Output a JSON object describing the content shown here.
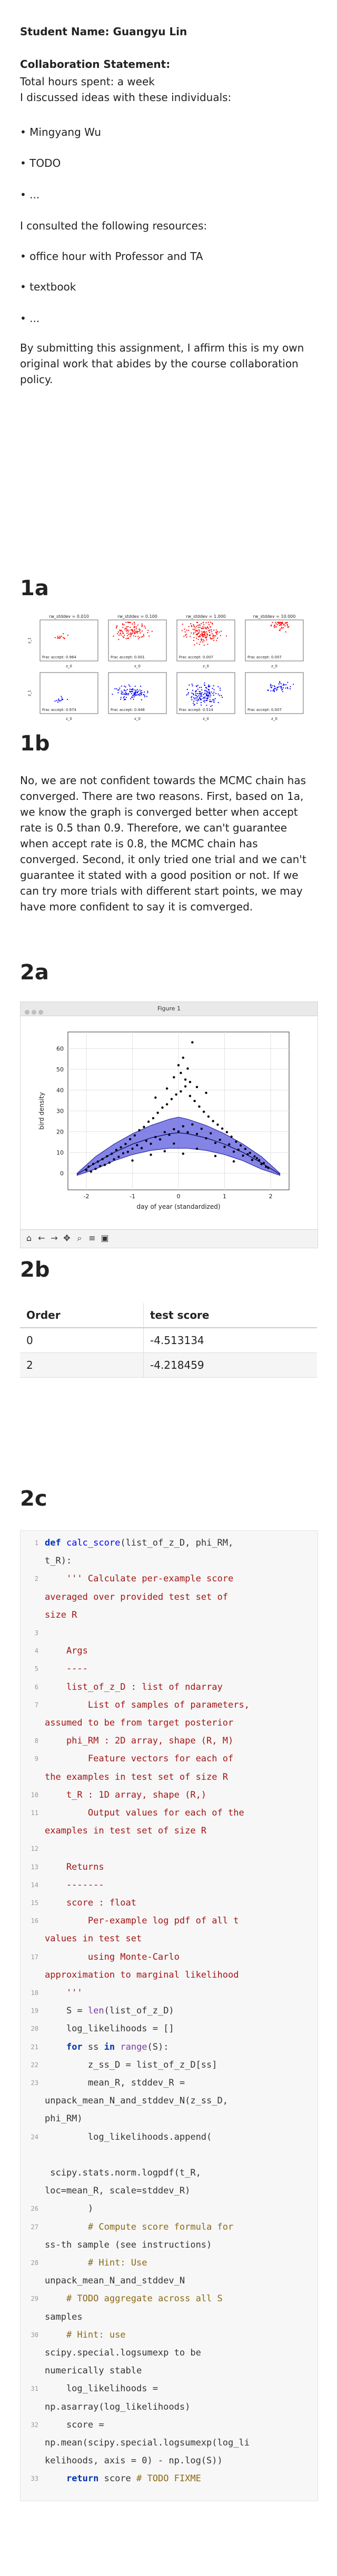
{
  "header": {
    "student_name": "Student Name: Guangyu Lin",
    "collab_title": "Collaboration Statement:",
    "hours": " Total hours spent: a week",
    "discussed": " I discussed ideas with these individuals:",
    "individuals": [
      "• Mingyang Wu",
      "• TODO",
      "• ..."
    ],
    "resources_intro": "I consulted the following resources:",
    "resources": [
      "• office hour with Professor and TA",
      "• textbook",
      "• ..."
    ],
    "affirmation": "By submitting this assignment, I affirm this is my own original work that abides by the course collaboration policy."
  },
  "sections": {
    "s1a": "1a",
    "s1b": "1b",
    "s2a": "2a",
    "s2b": "2b",
    "s2c": "2c"
  },
  "fig1a": {
    "panel_titles": [
      "rw_stddev = 0.010",
      "rw_stddev = 0.100",
      "rw_stddev = 1.000",
      "rw_stddev = 10.000"
    ],
    "top_accept": [
      "Frac accept: 0.964",
      "Frac accept: 0.001",
      "Frac accept: 0.007",
      "Frac accept: 0.007"
    ],
    "bottom_accept": [
      "Frac accept: 0.974",
      "Frac accept: 0.448",
      "Frac accept: 0.514",
      "Frac accept: 0.007"
    ],
    "ylabel": "z_1",
    "xlabel": "z_0",
    "colors": {
      "top": "#ff0000",
      "bottom": "#0000ff"
    }
  },
  "answer_1b": "No, we are not confident towards the MCMC chain has converged. There are two reasons. First, based on 1a, we know the graph is converged better when accept rate is 0.5 than 0.9. Therefore, we can't guarantee when accept rate is 0.8, the MCMC chain has converged. Second, it only tried one trial and we can't guarantee it stated with a good position or not. If we can try more trials with different start points, we may have more confident to say it is comverged.",
  "figure_window": {
    "title": "Figure 1",
    "toolbar_icons": [
      "home-icon",
      "back-icon",
      "forward-icon",
      "pan-icon",
      "zoom-icon",
      "settings-icon",
      "save-icon"
    ]
  },
  "chart_data": {
    "type": "scatter",
    "title": "",
    "xlabel": "day of year (standardized)",
    "ylabel": "bird density",
    "xlim": [
      -2.4,
      2.4
    ],
    "ylim": [
      -8,
      68
    ],
    "xticks": [
      -2,
      -1,
      0,
      1,
      2
    ],
    "yticks": [
      0,
      10,
      20,
      30,
      40,
      50,
      60
    ],
    "grid": true,
    "band": {
      "x": [
        -2.2,
        -1.8,
        -1.4,
        -1.0,
        -0.6,
        -0.2,
        0.0,
        0.2,
        0.6,
        1.0,
        1.4,
        1.8,
        2.2
      ],
      "lower": [
        -1,
        2,
        6,
        9,
        11,
        12,
        12,
        12,
        11,
        9,
        6,
        2,
        -1
      ],
      "upper": [
        0,
        8,
        14,
        19,
        23,
        26,
        27,
        26,
        23,
        19,
        14,
        8,
        0
      ],
      "color": "#5b5bdf"
    },
    "points_color": "#000000",
    "points": [
      [
        -2.0,
        1.5
      ],
      [
        -1.95,
        3.2
      ],
      [
        -1.9,
        0.8
      ],
      [
        -1.85,
        4.5
      ],
      [
        -1.8,
        2.1
      ],
      [
        -1.75,
        5.6
      ],
      [
        -1.7,
        3.4
      ],
      [
        -1.65,
        6.8
      ],
      [
        -1.6,
        4.0
      ],
      [
        -1.55,
        8.2
      ],
      [
        -1.5,
        5.1
      ],
      [
        -1.45,
        9.4
      ],
      [
        -1.4,
        6.7
      ],
      [
        -1.35,
        11.2
      ],
      [
        -1.3,
        7.9
      ],
      [
        -1.25,
        12.5
      ],
      [
        -1.2,
        9.6
      ],
      [
        -1.15,
        14.1
      ],
      [
        -1.1,
        10.3
      ],
      [
        -1.05,
        16.4
      ],
      [
        -1.0,
        11.8
      ],
      [
        -0.95,
        18.2
      ],
      [
        -0.9,
        13.5
      ],
      [
        -0.85,
        20.7
      ],
      [
        -0.8,
        12.1
      ],
      [
        -0.75,
        22.3
      ],
      [
        -0.7,
        15.6
      ],
      [
        -0.65,
        24.8
      ],
      [
        -0.6,
        14.2
      ],
      [
        -0.55,
        26.5
      ],
      [
        -0.5,
        17.4
      ],
      [
        -0.45,
        29.1
      ],
      [
        -0.4,
        16.3
      ],
      [
        -0.35,
        31.6
      ],
      [
        -0.3,
        19.8
      ],
      [
        -0.25,
        33.2
      ],
      [
        -0.2,
        18.5
      ],
      [
        -0.15,
        35.7
      ],
      [
        -0.1,
        21.2
      ],
      [
        -0.05,
        37.9
      ],
      [
        0.0,
        20.1
      ],
      [
        0.05,
        39.4
      ],
      [
        0.1,
        22.6
      ],
      [
        0.15,
        41.8
      ],
      [
        0.2,
        19.7
      ],
      [
        0.25,
        37.2
      ],
      [
        0.3,
        23.5
      ],
      [
        0.35,
        34.8
      ],
      [
        0.4,
        18.9
      ],
      [
        0.45,
        32.1
      ],
      [
        0.5,
        21.4
      ],
      [
        0.55,
        29.6
      ],
      [
        0.6,
        16.8
      ],
      [
        0.65,
        27.3
      ],
      [
        0.7,
        19.2
      ],
      [
        0.75,
        25.1
      ],
      [
        0.8,
        14.6
      ],
      [
        0.85,
        23.4
      ],
      [
        0.9,
        16.1
      ],
      [
        0.95,
        21.5
      ],
      [
        1.0,
        12.7
      ],
      [
        1.05,
        19.8
      ],
      [
        1.1,
        13.9
      ],
      [
        1.15,
        17.6
      ],
      [
        1.2,
        10.4
      ],
      [
        1.25,
        15.2
      ],
      [
        1.3,
        11.3
      ],
      [
        1.35,
        13.4
      ],
      [
        1.4,
        8.5
      ],
      [
        1.45,
        11.7
      ],
      [
        1.5,
        9.1
      ],
      [
        1.55,
        9.8
      ],
      [
        1.6,
        6.4
      ],
      [
        1.65,
        8.1
      ],
      [
        1.7,
        7.2
      ],
      [
        1.75,
        6.3
      ],
      [
        1.8,
        4.4
      ],
      [
        1.85,
        4.9
      ],
      [
        1.9,
        3.1
      ],
      [
        1.95,
        2.6
      ],
      [
        -0.6,
        8.9
      ],
      [
        -0.3,
        10.6
      ],
      [
        0.1,
        9.4
      ],
      [
        0.4,
        11.8
      ],
      [
        0.8,
        8.3
      ],
      [
        -1.0,
        6.1
      ],
      [
        1.2,
        5.7
      ],
      [
        -0.1,
        14.3
      ],
      [
        0.0,
        52.0
      ],
      [
        0.05,
        48.3
      ],
      [
        0.1,
        55.6
      ],
      [
        0.15,
        45.1
      ],
      [
        0.2,
        50.4
      ],
      [
        0.25,
        43.9
      ],
      [
        0.3,
        63.0
      ],
      [
        -0.1,
        46.2
      ],
      [
        0.4,
        41.5
      ],
      [
        -0.25,
        40.8
      ],
      [
        0.6,
        38.7
      ],
      [
        -0.5,
        36.4
      ]
    ]
  },
  "table_2b": {
    "headers": [
      "Order",
      "test score"
    ],
    "rows": [
      [
        "0",
        "-4.513134"
      ],
      [
        "2",
        "-4.218459"
      ]
    ]
  },
  "code_2c": {
    "lines": [
      "def calc_score(list_of_z_D, phi_RM,",
      "t_R):",
      "    ''' Calculate per-example score",
      "averaged over provided test set of",
      "size R",
      "",
      "    Args",
      "    ----",
      "    list_of_z_D : list of ndarray",
      "        List of samples of parameters,",
      "assumed to be from target posterior",
      "    phi_RM : 2D array, shape (R, M)",
      "        Feature vectors for each of",
      "the examples in test set of size R",
      "    t_R : 1D array, shape (R,)",
      "        Output values for each of the",
      "examples in test set of size R",
      "",
      "    Returns",
      "    -------",
      "    score : float",
      "        Per-example log pdf of all t",
      "values in test set",
      "        using Monte-Carlo",
      "approximation to marginal likelihood",
      "    '''",
      "    S = len(list_of_z_D)",
      "    log_likelihoods = []",
      "    for ss in range(S):",
      "        z_ss_D = list_of_z_D[ss]",
      "        mean_R, stddev_R =",
      "unpack_mean_N_and_stddev_N(z_ss_D,",
      "phi_RM)",
      "        log_likelihoods.append(",
      "",
      " scipy.stats.norm.logpdf(t_R,",
      "loc=mean_R, scale=stddev_R)",
      "        )",
      "        # Compute score formula for",
      "ss-th sample (see instructions)",
      "        # Hint: Use",
      "unpack_mean_N_and_stddev_N",
      "    # TODO aggregate across all S",
      "samples",
      "    # Hint: use",
      "scipy.special.logsumexp to be",
      "numerically stable",
      "    log_likelihoods =",
      "np.asarray(log_likelihoods)",
      "    score =",
      "np.mean(scipy.special.logsumexp(log_li",
      "kelihoods, axis = 0) - np.log(S))",
      "    return score # TODO FIXME"
    ],
    "numbers": [
      "1",
      "",
      "2",
      "",
      "",
      "3",
      "4",
      "5",
      "6",
      "7",
      "",
      "8",
      "9",
      "",
      "10",
      "11",
      "",
      "12",
      "13",
      "14",
      "15",
      "16",
      "",
      "17",
      "",
      "18",
      "19",
      "20",
      "21",
      "22",
      "23",
      "",
      "",
      "24",
      "",
      "",
      "",
      "26",
      "27",
      "",
      "28",
      "",
      "29",
      "",
      "30",
      "",
      "",
      "31",
      "",
      "32",
      "",
      "",
      "33"
    ]
  }
}
